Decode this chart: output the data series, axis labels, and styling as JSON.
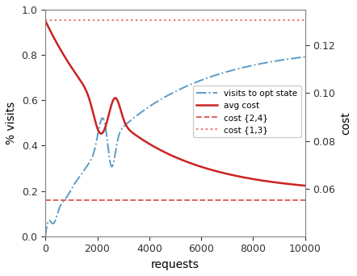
{
  "xlabel": "requests",
  "ylabel_left": "% visits",
  "ylabel_right": "cost",
  "xlim": [
    0,
    10000
  ],
  "ylim_left": [
    0,
    1.0
  ],
  "ylim_right": [
    0.04,
    0.135
  ],
  "yticks_right": [
    0.06,
    0.08,
    0.1,
    0.12
  ],
  "legend_labels": [
    "visits to opt state",
    "avg cost",
    "cost {2,4}",
    "cost {1,3}"
  ],
  "blue_color": "#5B9BC8",
  "red_solid_color": "#CC2222",
  "red_dashed_color": "#DD5555",
  "red_dotted_color": "#EE7777",
  "cost24_cost_val": 0.055,
  "cost13_cost_val": 0.1305,
  "figsize": [
    4.42,
    3.42
  ],
  "dpi": 100
}
